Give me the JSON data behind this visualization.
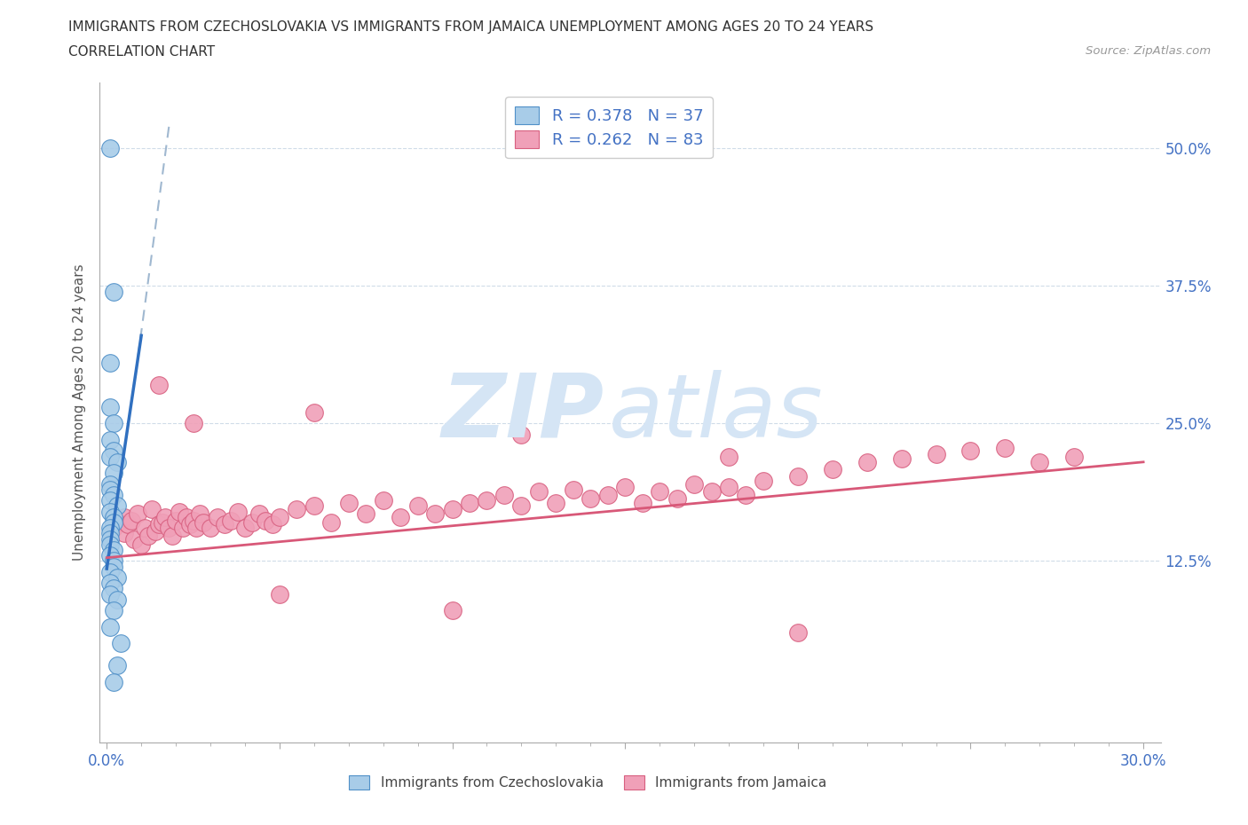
{
  "title_line1": "IMMIGRANTS FROM CZECHOSLOVAKIA VS IMMIGRANTS FROM JAMAICA UNEMPLOYMENT AMONG AGES 20 TO 24 YEARS",
  "title_line2": "CORRELATION CHART",
  "source": "Source: ZipAtlas.com",
  "ylabel": "Unemployment Among Ages 20 to 24 years",
  "xlim": [
    -0.002,
    0.305
  ],
  "ylim": [
    -0.04,
    0.56
  ],
  "xtick_positions": [
    0.0,
    0.05,
    0.1,
    0.15,
    0.2,
    0.25,
    0.3
  ],
  "xtick_labels": [
    "0.0%",
    "",
    "",
    "",
    "",
    "",
    "30.0%"
  ],
  "ytick_positions": [
    0.0,
    0.125,
    0.25,
    0.375,
    0.5
  ],
  "ytick_labels_right": [
    "",
    "12.5%",
    "25.0%",
    "37.5%",
    "50.0%"
  ],
  "legend_R_czechoslovakia": "R = 0.378",
  "legend_N_czechoslovakia": "N = 37",
  "legend_R_jamaica": "R = 0.262",
  "legend_N_jamaica": "N = 83",
  "color_czechoslovakia_fill": "#A8CCE8",
  "color_czechoslovakia_edge": "#5090C8",
  "color_czechoslovakia_line": "#3070C0",
  "color_czechoslovakia_dash": "#A0B8D0",
  "color_jamaica_fill": "#F0A0B8",
  "color_jamaica_edge": "#D86080",
  "color_jamaica_line": "#D85878",
  "color_text_blue": "#4472C4",
  "color_grid": "#D0DCE8",
  "watermark_color": "#D5E5F5",
  "background_color": "#FFFFFF",
  "cz_x": [
    0.001,
    0.002,
    0.001,
    0.001,
    0.002,
    0.001,
    0.002,
    0.001,
    0.003,
    0.002,
    0.001,
    0.001,
    0.002,
    0.001,
    0.003,
    0.001,
    0.002,
    0.002,
    0.001,
    0.001,
    0.001,
    0.001,
    0.002,
    0.001,
    0.002,
    0.002,
    0.001,
    0.003,
    0.001,
    0.002,
    0.001,
    0.003,
    0.002,
    0.001,
    0.004,
    0.003,
    0.002
  ],
  "cz_y": [
    0.5,
    0.37,
    0.305,
    0.265,
    0.25,
    0.235,
    0.225,
    0.22,
    0.215,
    0.205,
    0.195,
    0.19,
    0.185,
    0.18,
    0.175,
    0.17,
    0.165,
    0.16,
    0.155,
    0.15,
    0.145,
    0.14,
    0.135,
    0.13,
    0.125,
    0.12,
    0.115,
    0.11,
    0.105,
    0.1,
    0.095,
    0.09,
    0.08,
    0.065,
    0.05,
    0.03,
    0.015
  ],
  "ja_x": [
    0.002,
    0.003,
    0.005,
    0.005,
    0.006,
    0.007,
    0.008,
    0.009,
    0.01,
    0.011,
    0.012,
    0.013,
    0.014,
    0.015,
    0.016,
    0.017,
    0.018,
    0.019,
    0.02,
    0.021,
    0.022,
    0.023,
    0.024,
    0.025,
    0.026,
    0.027,
    0.028,
    0.03,
    0.032,
    0.034,
    0.036,
    0.038,
    0.04,
    0.042,
    0.044,
    0.046,
    0.048,
    0.05,
    0.055,
    0.06,
    0.065,
    0.07,
    0.075,
    0.08,
    0.085,
    0.09,
    0.095,
    0.1,
    0.105,
    0.11,
    0.115,
    0.12,
    0.125,
    0.13,
    0.135,
    0.14,
    0.145,
    0.15,
    0.155,
    0.16,
    0.165,
    0.17,
    0.175,
    0.18,
    0.185,
    0.19,
    0.2,
    0.21,
    0.22,
    0.23,
    0.24,
    0.25,
    0.26,
    0.27,
    0.28,
    0.015,
    0.025,
    0.06,
    0.12,
    0.18,
    0.05,
    0.1,
    0.2
  ],
  "ja_y": [
    0.155,
    0.16,
    0.15,
    0.165,
    0.158,
    0.162,
    0.145,
    0.168,
    0.14,
    0.155,
    0.148,
    0.172,
    0.152,
    0.158,
    0.16,
    0.165,
    0.155,
    0.148,
    0.162,
    0.17,
    0.155,
    0.165,
    0.158,
    0.162,
    0.155,
    0.168,
    0.16,
    0.155,
    0.165,
    0.158,
    0.162,
    0.17,
    0.155,
    0.16,
    0.168,
    0.162,
    0.158,
    0.165,
    0.172,
    0.175,
    0.16,
    0.178,
    0.168,
    0.18,
    0.165,
    0.175,
    0.168,
    0.172,
    0.178,
    0.18,
    0.185,
    0.175,
    0.188,
    0.178,
    0.19,
    0.182,
    0.185,
    0.192,
    0.178,
    0.188,
    0.182,
    0.195,
    0.188,
    0.192,
    0.185,
    0.198,
    0.202,
    0.208,
    0.215,
    0.218,
    0.222,
    0.225,
    0.228,
    0.215,
    0.22,
    0.285,
    0.25,
    0.26,
    0.24,
    0.22,
    0.095,
    0.08,
    0.06
  ]
}
